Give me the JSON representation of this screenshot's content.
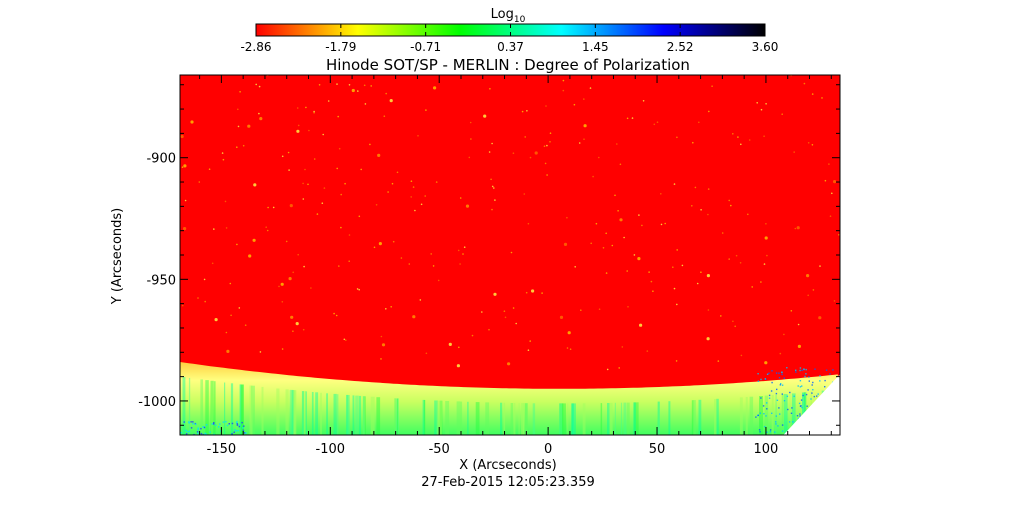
{
  "chart_data": {
    "type": "heatmap",
    "title": "Hinode SOT/SP - MERLIN : Degree of Polarization",
    "xlabel": "X (Arcseconds)",
    "ylabel": "Y (Arcseconds)",
    "date_label": "27-Feb-2015 12:05:23.359",
    "colorbar": {
      "label_main": "Log",
      "label_sub": "10",
      "ticks": [
        "-2.86",
        "-1.79",
        "-0.71",
        "0.37",
        "1.45",
        "2.52",
        "3.60"
      ],
      "range": [
        -2.86,
        3.6
      ],
      "colormap": [
        "#ff0000",
        "#ffff00",
        "#00ff00",
        "#00ffff",
        "#0000ff",
        "#000000"
      ]
    },
    "xlim": [
      -169,
      134
    ],
    "ylim": [
      -1014,
      -866
    ],
    "x_ticks": [
      -150,
      -100,
      -50,
      0,
      50,
      100
    ],
    "x_tick_labels": [
      "-150",
      "-100",
      "-50",
      "0",
      "50",
      "100"
    ],
    "y_ticks": [
      -900,
      -950,
      -1000
    ],
    "y_tick_labels": [
      "-900",
      "-950",
      "-1000"
    ],
    "limb": {
      "y_at_x0": -995,
      "y_at_left": -984,
      "y_at_right": -989,
      "band_width": 10
    },
    "colors": {
      "background": "#ff0000",
      "limb_band": "#ffff80",
      "below_limb": "#40ff60",
      "deep": "#00ffcc"
    }
  }
}
